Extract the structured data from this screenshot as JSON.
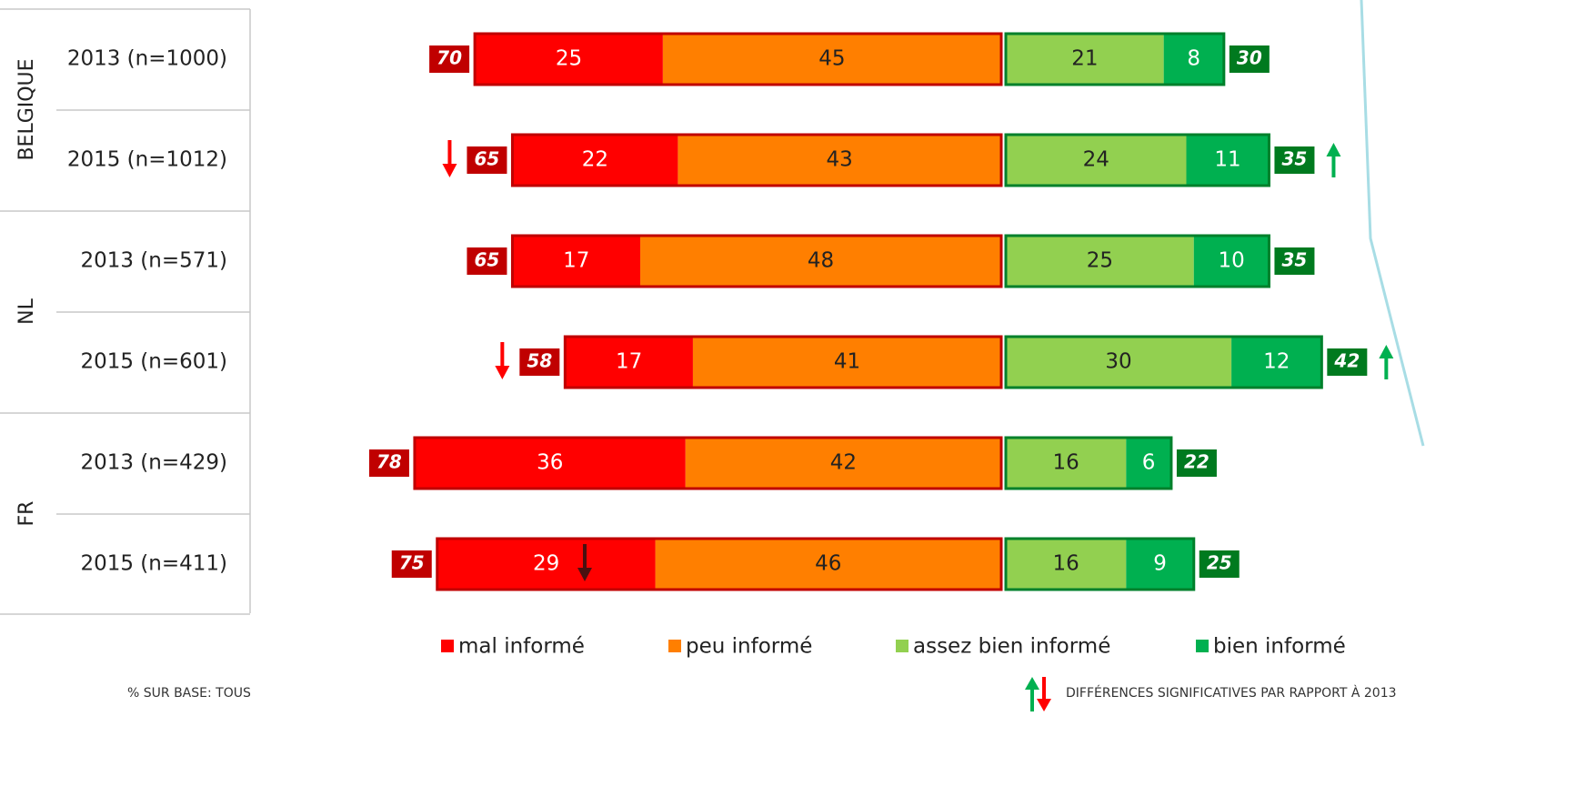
{
  "chart_data": {
    "type": "diverging_bar",
    "groups": [
      {
        "name": "BELGIQUE",
        "rows": [
          0,
          1
        ]
      },
      {
        "name": "NL",
        "rows": [
          2,
          3
        ]
      },
      {
        "name": "FR",
        "rows": [
          4,
          5
        ]
      }
    ],
    "categories": [
      "2013 (n=1000)",
      "2015 (n=1012)",
      "2013 (n=571)",
      "2015 (n=601)",
      "2013 (n=429)",
      "2015 (n=411)"
    ],
    "series": [
      {
        "name": "mal informé",
        "color": "#ff0000",
        "side": "left",
        "values": [
          25,
          22,
          17,
          17,
          36,
          29
        ]
      },
      {
        "name": "peu informé",
        "color": "#ff7f00",
        "side": "left",
        "values": [
          45,
          43,
          48,
          41,
          42,
          46
        ]
      },
      {
        "name": "assez bien informé",
        "color": "#92d050",
        "side": "right",
        "values": [
          21,
          24,
          25,
          30,
          16,
          16
        ]
      },
      {
        "name": "bien informé",
        "color": "#00b050",
        "side": "right",
        "values": [
          8,
          11,
          10,
          12,
          6,
          9
        ]
      }
    ],
    "left_totals": [
      70,
      65,
      65,
      58,
      78,
      75
    ],
    "right_totals": [
      30,
      35,
      35,
      42,
      22,
      25
    ],
    "footnote": "% SUR BASE: TOUS",
    "significance_note": "DIFFÉRENCES SIGNIFICATIVES PAR RAPPORT À 2013"
  }
}
